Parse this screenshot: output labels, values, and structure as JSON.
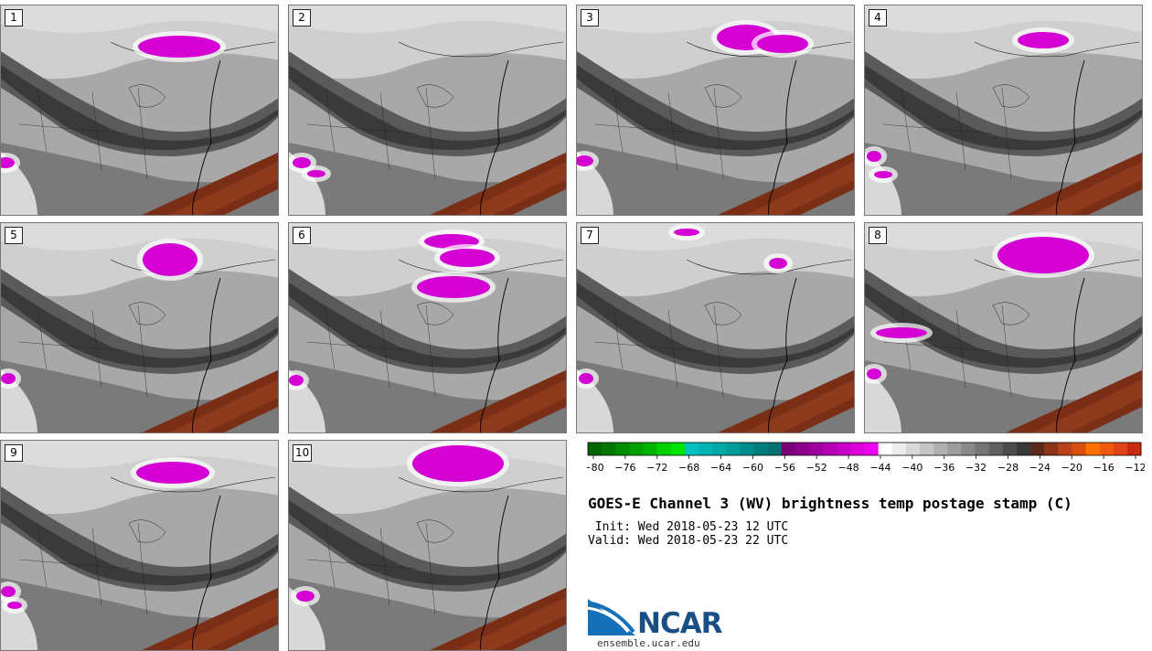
{
  "panels": [
    {
      "label": "1",
      "blobs": [
        [
          195,
          45,
          45,
          12
        ],
        [
          5,
          172,
          10,
          6
        ]
      ]
    },
    {
      "label": "2",
      "blobs": [
        [
          14,
          172,
          10,
          6
        ],
        [
          30,
          184,
          10,
          4
        ]
      ]
    },
    {
      "label": "3",
      "blobs": [
        [
          185,
          35,
          32,
          14
        ],
        [
          225,
          42,
          28,
          10
        ],
        [
          8,
          170,
          10,
          6
        ]
      ]
    },
    {
      "label": "4",
      "blobs": [
        [
          195,
          38,
          28,
          9
        ],
        [
          10,
          165,
          8,
          6
        ],
        [
          20,
          185,
          10,
          4
        ]
      ]
    },
    {
      "label": "5",
      "blobs": [
        [
          185,
          40,
          30,
          18
        ],
        [
          8,
          170,
          8,
          6
        ]
      ]
    },
    {
      "label": "6",
      "blobs": [
        [
          178,
          20,
          30,
          8
        ],
        [
          195,
          38,
          30,
          10
        ],
        [
          180,
          70,
          40,
          12
        ],
        [
          8,
          172,
          8,
          6
        ]
      ]
    },
    {
      "label": "7",
      "blobs": [
        [
          220,
          44,
          10,
          6
        ],
        [
          120,
          10,
          14,
          4
        ],
        [
          10,
          170,
          8,
          6
        ]
      ]
    },
    {
      "label": "8",
      "blobs": [
        [
          195,
          35,
          50,
          20
        ],
        [
          40,
          120,
          28,
          6
        ],
        [
          10,
          165,
          8,
          6
        ]
      ]
    },
    {
      "label": "9",
      "blobs": [
        [
          188,
          35,
          40,
          12
        ],
        [
          8,
          165,
          8,
          6
        ],
        [
          15,
          180,
          8,
          4
        ]
      ]
    },
    {
      "label": "10",
      "blobs": [
        [
          185,
          25,
          50,
          20
        ],
        [
          18,
          170,
          10,
          6
        ]
      ]
    }
  ],
  "colorbar": {
    "colors": [
      "#006400",
      "#007800",
      "#008c00",
      "#00a000",
      "#00b400",
      "#00d000",
      "#00e400",
      "#00c0c0",
      "#00b4b4",
      "#00a8a8",
      "#009c9c",
      "#008c8c",
      "#007c7c",
      "#007070",
      "#7a007a",
      "#8c008c",
      "#a000a0",
      "#b400b4",
      "#c800c8",
      "#dc00dc",
      "#f000f0",
      "#ffffff",
      "#ececec",
      "#d8d8d8",
      "#c4c4c4",
      "#b0b0b0",
      "#9c9c9c",
      "#888888",
      "#747474",
      "#606060",
      "#4c4c4c",
      "#383838",
      "#5c2a1a",
      "#8a3418",
      "#b8401a",
      "#d85010",
      "#ff7000",
      "#f05a10",
      "#e04418",
      "#c82c10"
    ],
    "ticks": [
      "−80",
      "−76",
      "−72",
      "−68",
      "−64",
      "−60",
      "−56",
      "−52",
      "−48",
      "−44",
      "−40",
      "−36",
      "−32",
      "−28",
      "−24",
      "−20",
      "−16",
      "−12"
    ]
  },
  "title": "GOES-E Channel 3 (WV) brightness temp postage stamp (C)",
  "init_line": " Init: Wed 2018-05-23 12 UTC",
  "valid_line": "Valid: Wed 2018-05-23 22 UTC",
  "logo_text": "NCAR",
  "site": "ensemble.ucar.edu"
}
